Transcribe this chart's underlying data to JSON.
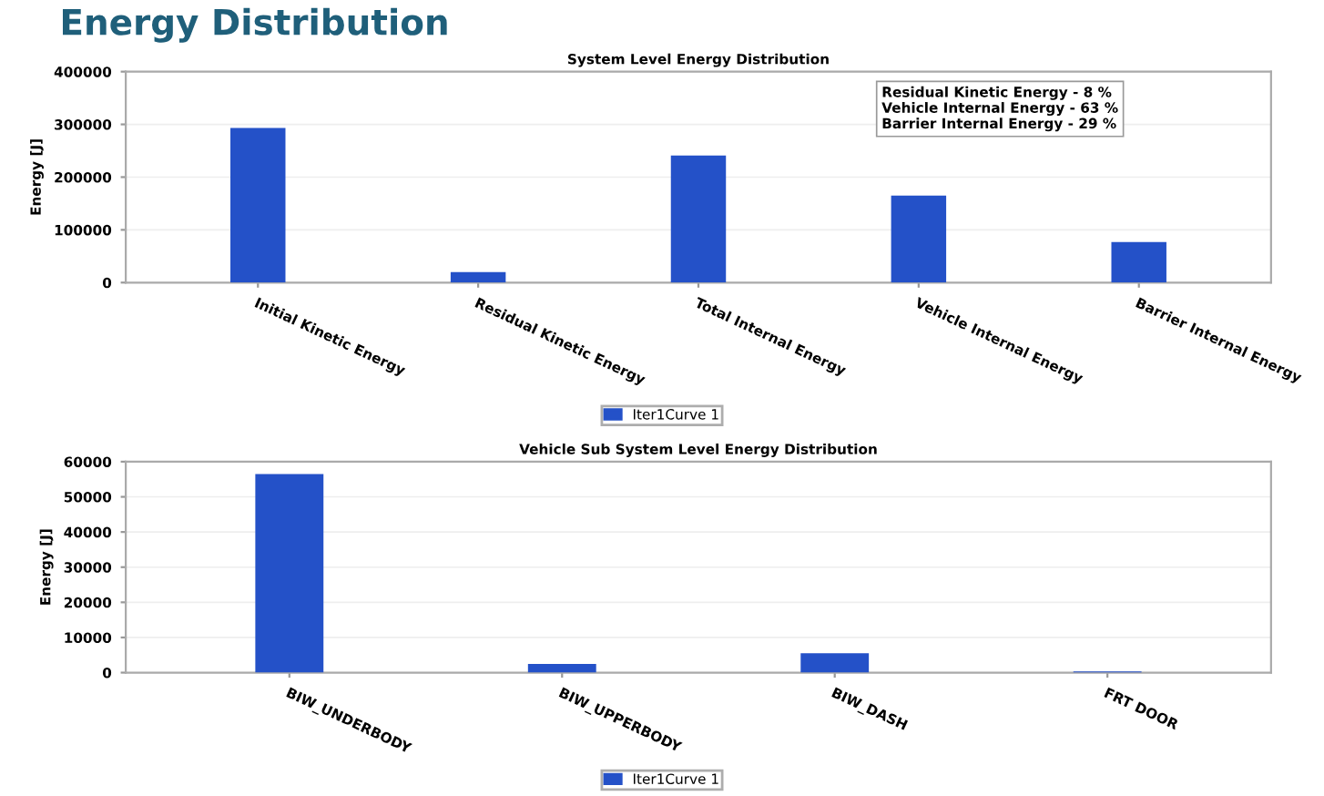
{
  "chart_data": [
    {
      "type": "bar",
      "title": "System Level Energy Distribution",
      "ylabel": "Energy [J]",
      "categories": [
        "Initial Kinetic Energy",
        "Residual Kinetic Energy",
        "Total Internal Energy",
        "Vehicle Internal Energy",
        "Barrier Internal Energy"
      ],
      "series": [
        {
          "name": "Iter1Curve 1",
          "color": "#2451c8",
          "values": [
            293000,
            20000,
            241000,
            165000,
            77000
          ]
        }
      ],
      "ylim": [
        0,
        400000
      ],
      "yticks": [
        0,
        100000,
        200000,
        300000,
        400000
      ],
      "grid": "y",
      "legend": "bottom",
      "annotations": [
        "Energy Distribution",
        "Residual Kinetic Energy - 8 %",
        "Vehicle Internal Energy - 63 %",
        "Barrier Internal Energy - 29 %"
      ]
    },
    {
      "type": "bar",
      "title": "Vehicle Sub System Level Energy Distribution",
      "ylabel": "Energy [J]",
      "categories": [
        "BIW_UNDERBODY",
        "BIW_UPPERBODY",
        "BIW_DASH",
        "FRT DOOR"
      ],
      "series": [
        {
          "name": "Iter1Curve 1",
          "color": "#2451c8",
          "values": [
            56500,
            2500,
            5500,
            300
          ]
        }
      ],
      "ylim": [
        0,
        60000
      ],
      "yticks": [
        0,
        10000,
        20000,
        30000,
        40000,
        50000,
        60000
      ],
      "grid": "y",
      "legend": "bottom"
    }
  ]
}
